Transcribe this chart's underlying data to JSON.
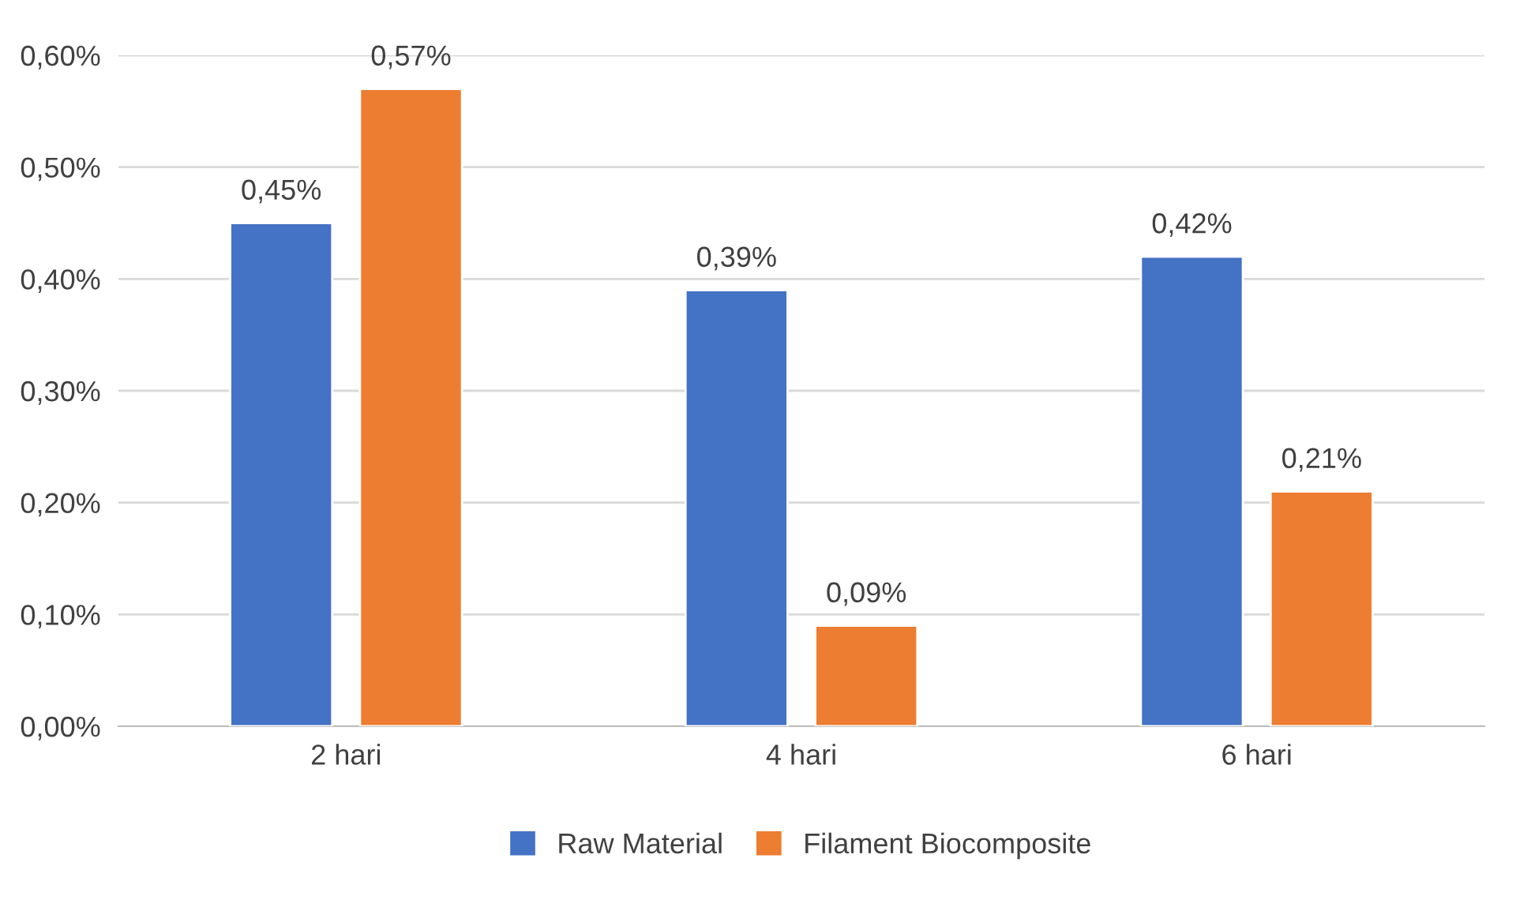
{
  "chart_data": {
    "type": "bar",
    "categories": [
      "2 hari",
      "4 hari",
      "6 hari"
    ],
    "series": [
      {
        "name": "Raw Material",
        "color": "#4472c4",
        "values": [
          0.45,
          0.39,
          0.42
        ],
        "value_labels": [
          "0,45%",
          "0,39%",
          "0,42%"
        ]
      },
      {
        "name": "Filament Biocomposite",
        "color": "#ed7d31",
        "values": [
          0.57,
          0.09,
          0.21
        ],
        "value_labels": [
          "0,57%",
          "0,09%",
          "0,21%"
        ]
      }
    ],
    "ylim": [
      0,
      0.6
    ],
    "yticks": [
      {
        "value": 0,
        "label": "0,00%"
      },
      {
        "value": 0.1,
        "label": "0,10%"
      },
      {
        "value": 0.2,
        "label": "0,20%"
      },
      {
        "value": 0.3,
        "label": "0,30%"
      },
      {
        "value": 0.4,
        "label": "0,40%"
      },
      {
        "value": 0.5,
        "label": "0,50%"
      },
      {
        "value": 0.6,
        "label": "0,60%"
      }
    ],
    "grid": "y",
    "legend": "bottom"
  }
}
